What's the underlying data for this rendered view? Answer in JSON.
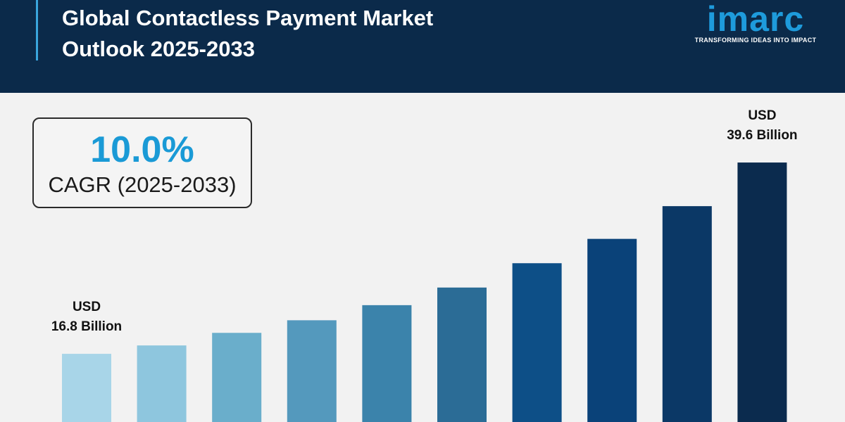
{
  "header": {
    "title": "Global Contactless Payment Market Outlook 2025-2033",
    "logo": "imarc",
    "tagline": "TRANSFORMING IDEAS INTO IMPACT"
  },
  "cagr": {
    "value": "10.0%",
    "label": "CAGR (2025-2033)"
  },
  "chart_data": {
    "type": "bar",
    "categories": [
      null,
      null,
      null,
      null,
      null,
      null,
      null,
      null,
      null,
      null
    ],
    "values": [
      16.8,
      17.8,
      19.3,
      20.8,
      22.6,
      24.7,
      27.6,
      30.5,
      34.4,
      39.6
    ],
    "value_labels": [
      [
        "USD",
        "16.8 Billion"
      ],
      null,
      null,
      null,
      null,
      null,
      null,
      null,
      null,
      [
        "USD",
        "39.6 Billion"
      ]
    ],
    "colors": [
      "#a8d5e8",
      "#8ec6de",
      "#6aaecb",
      "#5499bd",
      "#3b83ab",
      "#2b6c96",
      "#0d4f87",
      "#0a4279",
      "#0b3866",
      "#0b2b4e"
    ]
  }
}
